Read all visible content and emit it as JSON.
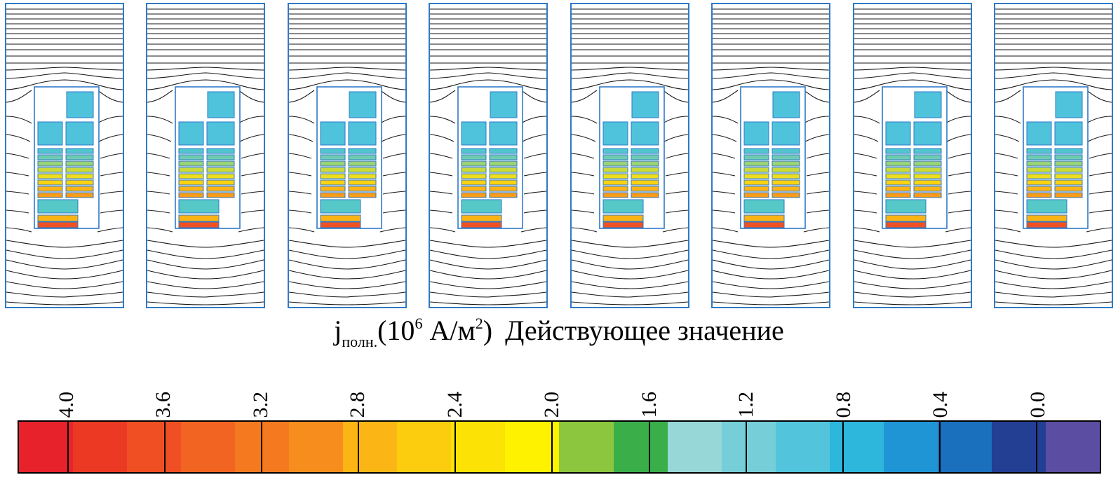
{
  "figure": {
    "panel_count": 8
  },
  "title": {
    "symbol": "j",
    "subscript": "полн.",
    "open_paren": "(10",
    "exponent_base": "6",
    "units": " А/м",
    "exponent_units": "2",
    "close_paren": ")",
    "caption": "Действующее значение"
  },
  "chart_data": {
    "type": "heatmap",
    "title": "j полн. (10⁶ А/м²) Действующее значение",
    "panel_count": 8,
    "panel_content": "contour plot of magnetic field lines around a transformer winding window with conductor blocks colored by total current density",
    "colorbar": {
      "quantity": "j полн.",
      "unit": "10⁶ А/м²",
      "value_type": "Действующее значение",
      "min": 0.0,
      "max": 4.0,
      "tick_step": 0.4,
      "orientation": "horizontal",
      "direction": "max at left, min at right",
      "tick_labels": [
        "4.0",
        "3.6",
        "3.2",
        "2.8",
        "2.4",
        "2.0",
        "1.6",
        "1.2",
        "0.8",
        "0.4",
        "0.0"
      ],
      "tick_positions_pct": [
        4.53,
        13.49,
        22.46,
        31.42,
        40.39,
        49.35,
        58.31,
        67.28,
        76.24,
        85.21,
        94.17
      ],
      "segment_colors": [
        "#e8222a",
        "#eb3923",
        "#ef4f22",
        "#f26421",
        "#f5791f",
        "#f78d1d",
        "#fbb616",
        "#fccd0e",
        "#fde205",
        "#fff200",
        "#8cc63e",
        "#3aae49",
        "#97d7d7",
        "#76ced9",
        "#52c5dc",
        "#2eb7dd",
        "#2095d6",
        "#1a70bd",
        "#223f94",
        "#5b4ea2"
      ]
    }
  },
  "colors": {
    "panel_border": "#2e79c8",
    "contour_line": "#161616",
    "background": "#ffffff",
    "tick": "#000000"
  }
}
